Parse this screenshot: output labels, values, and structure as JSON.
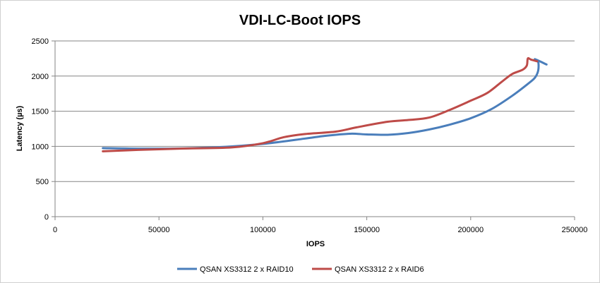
{
  "chart_data": {
    "type": "line",
    "title": "VDI-LC-Boot IOPS",
    "xlabel": "IOPS",
    "ylabel": "Latency (µs)",
    "xlim": [
      0,
      250000
    ],
    "ylim": [
      0,
      2500
    ],
    "x_ticks": [
      0,
      50000,
      100000,
      150000,
      200000,
      250000
    ],
    "y_ticks": [
      0,
      500,
      1000,
      1500,
      2000,
      2500
    ],
    "x_tick_labels": [
      "0",
      "50000",
      "100000",
      "150000",
      "200000",
      "250000"
    ],
    "y_tick_labels": [
      "0",
      "500",
      "1000",
      "1500",
      "2000",
      "2500"
    ],
    "grid": "horizontal",
    "legend_position": "bottom",
    "series": [
      {
        "name": "QSAN XS3312 2 x RAID10",
        "color": "#4a7ebb",
        "points": [
          [
            23000,
            975
          ],
          [
            40000,
            968
          ],
          [
            60000,
            970
          ],
          [
            80000,
            990
          ],
          [
            100000,
            1035
          ],
          [
            120000,
            1110
          ],
          [
            130000,
            1150
          ],
          [
            142000,
            1180
          ],
          [
            150000,
            1170
          ],
          [
            160000,
            1165
          ],
          [
            170000,
            1190
          ],
          [
            180000,
            1240
          ],
          [
            190000,
            1310
          ],
          [
            200000,
            1400
          ],
          [
            210000,
            1530
          ],
          [
            220000,
            1720
          ],
          [
            228000,
            1900
          ],
          [
            231000,
            1980
          ],
          [
            232500,
            2080
          ],
          [
            232500,
            2200
          ],
          [
            231000,
            2240
          ],
          [
            236500,
            2165
          ]
        ]
      },
      {
        "name": "QSAN XS3312 2 x RAID6",
        "color": "#be4b48",
        "points": [
          [
            23000,
            930
          ],
          [
            40000,
            950
          ],
          [
            60000,
            968
          ],
          [
            85000,
            985
          ],
          [
            100000,
            1045
          ],
          [
            110000,
            1130
          ],
          [
            120000,
            1175
          ],
          [
            135000,
            1210
          ],
          [
            145000,
            1270
          ],
          [
            160000,
            1350
          ],
          [
            170000,
            1375
          ],
          [
            180000,
            1410
          ],
          [
            190000,
            1520
          ],
          [
            200000,
            1650
          ],
          [
            208000,
            1760
          ],
          [
            215000,
            1920
          ],
          [
            220000,
            2030
          ],
          [
            225000,
            2090
          ],
          [
            227000,
            2150
          ],
          [
            227500,
            2250
          ],
          [
            229000,
            2235
          ],
          [
            232000,
            2210
          ]
        ]
      }
    ]
  }
}
